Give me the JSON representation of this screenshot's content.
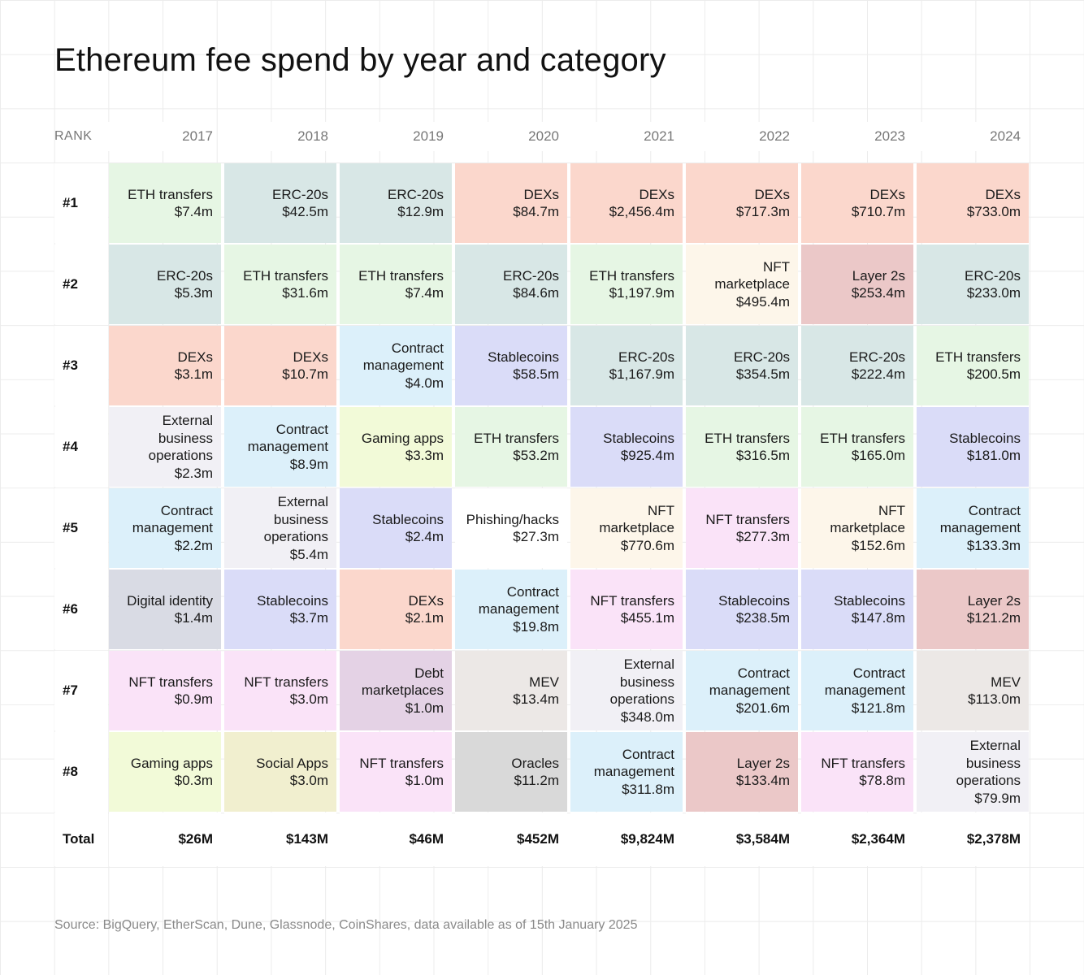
{
  "title": "Ethereum fee spend by year and category",
  "source": "Source: BigQuery, EtherScan, Dune, Glassnode, CoinShares, data available as of 15th January 2025",
  "rank_header": "RANK",
  "colors": {
    "ETH transfers": "#e6f6e4",
    "ERC-20s": "#d8e7e6",
    "DEXs": "#fbd7cc",
    "Contract management": "#dcf0fa",
    "External business operations": "#f1f0f5",
    "Gaming apps": "#f2fad8",
    "Stablecoins": "#dadcf8",
    "Digital identity": "#d9dbe4",
    "NFT transfers": "#fae3f8",
    "Social Apps": "#f1efcf",
    "Debt marketplaces": "#e4d2e5",
    "MEV": "#ece8e6",
    "Oracles": "#d9d9d9",
    "NFT marketplace": "#fdf6ea",
    "Layer 2s": "#ebc8c8",
    "Phishing/hacks": "#ffffff"
  },
  "chart_data": {
    "type": "table",
    "title": "Ethereum fee spend by year and category",
    "years": [
      "2017",
      "2018",
      "2019",
      "2020",
      "2021",
      "2022",
      "2023",
      "2024"
    ],
    "ranks": [
      "#1",
      "#2",
      "#3",
      "#4",
      "#5",
      "#6",
      "#7",
      "#8"
    ],
    "cells": [
      [
        {
          "category": "ETH transfers",
          "lines": [
            "ETH transfers"
          ],
          "value": "$7.4m"
        },
        {
          "category": "ERC-20s",
          "lines": [
            "ERC-20s"
          ],
          "value": "$42.5m"
        },
        {
          "category": "ERC-20s",
          "lines": [
            "ERC-20s"
          ],
          "value": "$12.9m"
        },
        {
          "category": "DEXs",
          "lines": [
            "DEXs"
          ],
          "value": "$84.7m"
        },
        {
          "category": "DEXs",
          "lines": [
            "DEXs"
          ],
          "value": "$2,456.4m"
        },
        {
          "category": "DEXs",
          "lines": [
            "DEXs"
          ],
          "value": "$717.3m"
        },
        {
          "category": "DEXs",
          "lines": [
            "DEXs"
          ],
          "value": "$710.7m"
        },
        {
          "category": "DEXs",
          "lines": [
            "DEXs"
          ],
          "value": "$733.0m"
        }
      ],
      [
        {
          "category": "ERC-20s",
          "lines": [
            "ERC-20s"
          ],
          "value": "$5.3m"
        },
        {
          "category": "ETH transfers",
          "lines": [
            "ETH transfers"
          ],
          "value": "$31.6m"
        },
        {
          "category": "ETH transfers",
          "lines": [
            "ETH transfers"
          ],
          "value": "$7.4m"
        },
        {
          "category": "ERC-20s",
          "lines": [
            "ERC-20s"
          ],
          "value": "$84.6m"
        },
        {
          "category": "ETH transfers",
          "lines": [
            "ETH transfers"
          ],
          "value": "$1,197.9m"
        },
        {
          "category": "NFT marketplace",
          "lines": [
            "NFT",
            "marketplace"
          ],
          "value": "$495.4m"
        },
        {
          "category": "Layer 2s",
          "lines": [
            "Layer 2s"
          ],
          "value": "$253.4m"
        },
        {
          "category": "ERC-20s",
          "lines": [
            "ERC-20s"
          ],
          "value": "$233.0m"
        }
      ],
      [
        {
          "category": "DEXs",
          "lines": [
            "DEXs"
          ],
          "value": "$3.1m"
        },
        {
          "category": "DEXs",
          "lines": [
            "DEXs"
          ],
          "value": "$10.7m"
        },
        {
          "category": "Contract management",
          "lines": [
            "Contract",
            "management"
          ],
          "value": "$4.0m"
        },
        {
          "category": "Stablecoins",
          "lines": [
            "Stablecoins"
          ],
          "value": "$58.5m"
        },
        {
          "category": "ERC-20s",
          "lines": [
            "ERC-20s"
          ],
          "value": "$1,167.9m"
        },
        {
          "category": "ERC-20s",
          "lines": [
            "ERC-20s"
          ],
          "value": "$354.5m"
        },
        {
          "category": "ERC-20s",
          "lines": [
            "ERC-20s"
          ],
          "value": "$222.4m"
        },
        {
          "category": "ETH transfers",
          "lines": [
            "ETH transfers"
          ],
          "value": "$200.5m"
        }
      ],
      [
        {
          "category": "External business operations",
          "lines": [
            "External",
            "business",
            "operations"
          ],
          "value": "$2.3m"
        },
        {
          "category": "Contract management",
          "lines": [
            "Contract",
            "management"
          ],
          "value": "$8.9m"
        },
        {
          "category": "Gaming apps",
          "lines": [
            "Gaming apps"
          ],
          "value": "$3.3m"
        },
        {
          "category": "ETH transfers",
          "lines": [
            "ETH transfers"
          ],
          "value": "$53.2m"
        },
        {
          "category": "Stablecoins",
          "lines": [
            "Stablecoins"
          ],
          "value": "$925.4m"
        },
        {
          "category": "ETH transfers",
          "lines": [
            "ETH transfers"
          ],
          "value": "$316.5m"
        },
        {
          "category": "ETH transfers",
          "lines": [
            "ETH transfers"
          ],
          "value": "$165.0m"
        },
        {
          "category": "Stablecoins",
          "lines": [
            "Stablecoins"
          ],
          "value": "$181.0m"
        }
      ],
      [
        {
          "category": "Contract management",
          "lines": [
            "Contract",
            "management"
          ],
          "value": "$2.2m"
        },
        {
          "category": "External business operations",
          "lines": [
            "External",
            "business",
            "operations"
          ],
          "value": "$5.4m"
        },
        {
          "category": "Stablecoins",
          "lines": [
            "Stablecoins"
          ],
          "value": "$2.4m"
        },
        {
          "category": "Phishing/hacks",
          "lines": [
            "Phishing/hacks"
          ],
          "value": "$27.3m"
        },
        {
          "category": "NFT marketplace",
          "lines": [
            "NFT",
            "marketplace"
          ],
          "value": "$770.6m"
        },
        {
          "category": "NFT transfers",
          "lines": [
            "NFT transfers"
          ],
          "value": "$277.3m"
        },
        {
          "category": "NFT marketplace",
          "lines": [
            "NFT",
            "marketplace"
          ],
          "value": "$152.6m"
        },
        {
          "category": "Contract management",
          "lines": [
            "Contract",
            "management"
          ],
          "value": "$133.3m"
        }
      ],
      [
        {
          "category": "Digital identity",
          "lines": [
            "Digital identity"
          ],
          "value": "$1.4m"
        },
        {
          "category": "Stablecoins",
          "lines": [
            "Stablecoins"
          ],
          "value": "$3.7m"
        },
        {
          "category": "DEXs",
          "lines": [
            "DEXs"
          ],
          "value": "$2.1m"
        },
        {
          "category": "Contract management",
          "lines": [
            "Contract",
            "management"
          ],
          "value": "$19.8m"
        },
        {
          "category": "NFT transfers",
          "lines": [
            "NFT transfers"
          ],
          "value": "$455.1m"
        },
        {
          "category": "Stablecoins",
          "lines": [
            "Stablecoins"
          ],
          "value": "$238.5m"
        },
        {
          "category": "Stablecoins",
          "lines": [
            "Stablecoins"
          ],
          "value": "$147.8m"
        },
        {
          "category": "Layer 2s",
          "lines": [
            "Layer 2s"
          ],
          "value": "$121.2m"
        }
      ],
      [
        {
          "category": "NFT transfers",
          "lines": [
            "NFT transfers"
          ],
          "value": "$0.9m"
        },
        {
          "category": "NFT transfers",
          "lines": [
            "NFT transfers"
          ],
          "value": "$3.0m"
        },
        {
          "category": "Debt marketplaces",
          "lines": [
            "Debt",
            "marketplaces"
          ],
          "value": "$1.0m"
        },
        {
          "category": "MEV",
          "lines": [
            "MEV"
          ],
          "value": "$13.4m"
        },
        {
          "category": "External business operations",
          "lines": [
            "External",
            "business",
            "operations"
          ],
          "value": "$348.0m"
        },
        {
          "category": "Contract management",
          "lines": [
            "Contract",
            "management"
          ],
          "value": "$201.6m"
        },
        {
          "category": "Contract management",
          "lines": [
            "Contract",
            "management"
          ],
          "value": "$121.8m"
        },
        {
          "category": "MEV",
          "lines": [
            "MEV"
          ],
          "value": "$113.0m"
        }
      ],
      [
        {
          "category": "Gaming apps",
          "lines": [
            "Gaming apps"
          ],
          "value": "$0.3m"
        },
        {
          "category": "Social Apps",
          "lines": [
            "Social Apps"
          ],
          "value": "$3.0m"
        },
        {
          "category": "NFT transfers",
          "lines": [
            "NFT transfers"
          ],
          "value": "$1.0m"
        },
        {
          "category": "Oracles",
          "lines": [
            "Oracles"
          ],
          "value": "$11.2m"
        },
        {
          "category": "Contract management",
          "lines": [
            "Contract",
            "management"
          ],
          "value": "$311.8m"
        },
        {
          "category": "Layer 2s",
          "lines": [
            "Layer 2s"
          ],
          "value": "$133.4m"
        },
        {
          "category": "NFT transfers",
          "lines": [
            "NFT transfers"
          ],
          "value": "$78.8m"
        },
        {
          "category": "External business operations",
          "lines": [
            "External",
            "business",
            "operations"
          ],
          "value": "$79.9m"
        }
      ]
    ],
    "total_label": "Total",
    "totals": [
      "$26M",
      "$143M",
      "$46M",
      "$452M",
      "$9,824M",
      "$3,584M",
      "$2,364M",
      "$2,378M"
    ]
  }
}
